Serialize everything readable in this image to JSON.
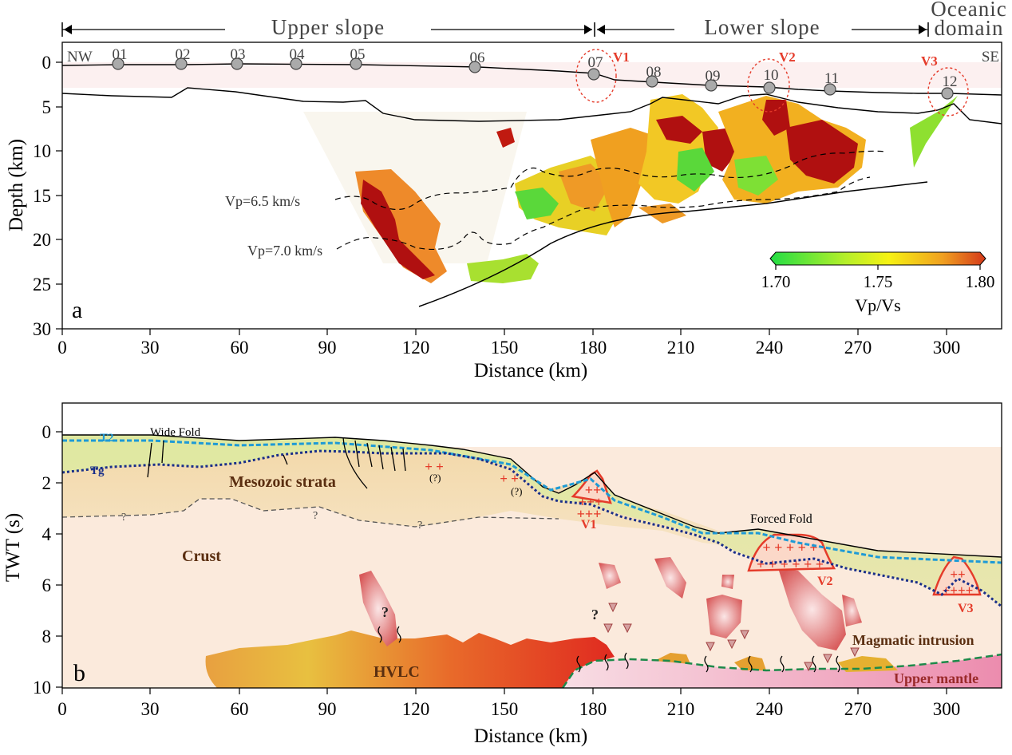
{
  "regions": {
    "upper_slope": "Upper slope",
    "lower_slope": "Lower slope",
    "oceanic_1": "Oceanic",
    "oceanic_2": "domain"
  },
  "panel_a": {
    "label": "a",
    "nw": "NW",
    "se": "SE",
    "ylabel": "Depth (km)",
    "xlabel": "Distance (km)",
    "x_ticks": [
      "0",
      "30",
      "60",
      "90",
      "120",
      "150",
      "180",
      "210",
      "240",
      "270",
      "300"
    ],
    "y_ticks": [
      "0",
      "5",
      "10",
      "15",
      "20",
      "25",
      "30"
    ],
    "obs_stations": [
      "01",
      "02",
      "03",
      "04",
      "05",
      "06",
      "07",
      "08",
      "09",
      "10",
      "11",
      "12"
    ],
    "volcano_labels": [
      "V1",
      "V2",
      "V3"
    ],
    "contour_labels": [
      "Vp=6.5 km/s",
      "Vp=7.0 km/s"
    ],
    "colorbar": {
      "title": "Vp/Vs",
      "ticks": [
        "1.70",
        "1.75",
        "1.80"
      ],
      "colors": [
        "#22dd44",
        "#f6f213",
        "#e0701a",
        "#b31010"
      ]
    }
  },
  "panel_b": {
    "label": "b",
    "ylabel": "TWT (s)",
    "xlabel": "Distance (km)",
    "x_ticks": [
      "0",
      "30",
      "60",
      "90",
      "120",
      "150",
      "180",
      "210",
      "240",
      "270",
      "300"
    ],
    "y_ticks": [
      "0",
      "2",
      "4",
      "6",
      "8",
      "10"
    ],
    "labels": {
      "t2": "T2",
      "tg": "Tg",
      "wide_fold": "Wide Fold",
      "mesozoic": "Mesozoic strata",
      "crust": "Crust",
      "hvlc": "HVLC",
      "forced_fold": "Forced Fold",
      "magmatic": "Magmatic intrusion",
      "mantle": "Upper mantle",
      "v1": "V1",
      "v2": "V2",
      "v3": "V3",
      "q": "?",
      "qp": "(?)"
    }
  }
}
